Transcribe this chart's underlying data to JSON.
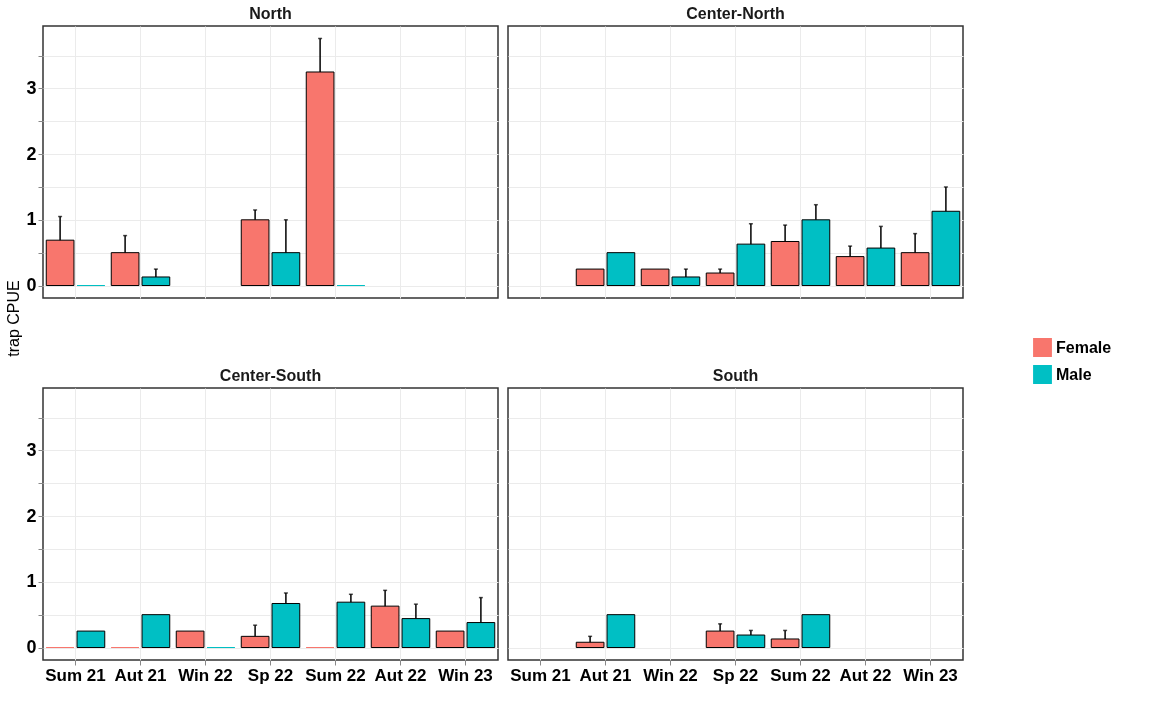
{
  "chart_data": [
    {
      "type": "bar",
      "title": "North",
      "ylabel": "trap CPUE",
      "categories": [
        "Sum 21",
        "Aut 21",
        "Win 22",
        "Sp 22",
        "Sum 22",
        "Aut 22",
        "Win 23"
      ],
      "series": [
        {
          "name": "Female",
          "color": "#f8766d",
          "values": [
            0.69,
            0.5,
            null,
            1.0,
            3.25,
            null,
            null
          ],
          "errors": [
            [
              0.69,
              1.05
            ],
            [
              0.5,
              0.76
            ],
            null,
            [
              1.0,
              1.15
            ],
            [
              3.25,
              3.76
            ],
            null,
            null
          ]
        },
        {
          "name": "Male",
          "color": "#00bfc4",
          "values": [
            0,
            0.13,
            null,
            0.5,
            0,
            null,
            null
          ],
          "errors": [
            null,
            [
              0.13,
              0.25
            ],
            null,
            [
              0.5,
              1.0
            ],
            null,
            null,
            null
          ]
        }
      ],
      "ylim": [
        -0.19,
        3.95
      ],
      "yticks": [
        0,
        {
          "value": 0.5,
          "label": null
        },
        1,
        {
          "value": 1.5,
          "label": null
        },
        2,
        {
          "value": 2.5,
          "label": null
        },
        3,
        {
          "value": 3.5,
          "label": null
        }
      ],
      "grid": true,
      "tick_labels": "y",
      "legend": "right"
    },
    {
      "type": "bar",
      "title": "Center-North",
      "categories": [
        "Sum 21",
        "Aut 21",
        "Win 22",
        "Sp 22",
        "Sum 22",
        "Aut 22",
        "Win 23"
      ],
      "series": [
        {
          "name": "Female",
          "color": "#f8766d",
          "values": [
            null,
            0.25,
            0.25,
            0.19,
            0.67,
            0.44,
            0.5
          ],
          "errors": [
            null,
            null,
            null,
            [
              0.19,
              0.25
            ],
            [
              0.67,
              0.92
            ],
            [
              0.44,
              0.6
            ],
            [
              0.5,
              0.79
            ]
          ]
        },
        {
          "name": "Male",
          "color": "#00bfc4",
          "values": [
            null,
            0.5,
            0.13,
            0.63,
            1.0,
            0.57,
            1.13
          ],
          "errors": [
            null,
            null,
            [
              0.13,
              0.25
            ],
            [
              0.63,
              0.94
            ],
            [
              1.0,
              1.23
            ],
            [
              0.57,
              0.9
            ],
            [
              1.13,
              1.5
            ]
          ]
        }
      ],
      "ylim": [
        -0.19,
        3.95
      ],
      "yticks": [
        0,
        {
          "value": 0.5,
          "label": null
        },
        1,
        {
          "value": 1.5,
          "label": null
        },
        2,
        {
          "value": 2.5,
          "label": null
        },
        3,
        {
          "value": 3.5,
          "label": null
        }
      ],
      "grid": true,
      "tick_labels": false
    },
    {
      "type": "bar",
      "title": "Center-South",
      "categories": [
        "Sum 21",
        "Aut 21",
        "Win 22",
        "Sp 22",
        "Sum 22",
        "Aut 22",
        "Win 23"
      ],
      "series": [
        {
          "name": "Female",
          "color": "#f8766d",
          "values": [
            0,
            0,
            0.25,
            0.17,
            0,
            0.63,
            0.25
          ],
          "errors": [
            null,
            null,
            null,
            [
              0.17,
              0.34
            ],
            null,
            [
              0.63,
              0.87
            ],
            null
          ]
        },
        {
          "name": "Male",
          "color": "#00bfc4",
          "values": [
            0.25,
            0.5,
            0,
            0.67,
            0.69,
            0.44,
            0.38
          ],
          "errors": [
            null,
            null,
            null,
            [
              0.67,
              0.83
            ],
            [
              0.69,
              0.81
            ],
            [
              0.44,
              0.66
            ],
            [
              0.38,
              0.76
            ]
          ]
        }
      ],
      "ylim": [
        -0.19,
        3.95
      ],
      "yticks": [
        0,
        {
          "value": 0.5,
          "label": null
        },
        1,
        {
          "value": 1.5,
          "label": null
        },
        2,
        {
          "value": 2.5,
          "label": null
        },
        3,
        {
          "value": 3.5,
          "label": null
        }
      ],
      "grid": true
    },
    {
      "type": "bar",
      "title": "South",
      "categories": [
        "Sum 21",
        "Aut 21",
        "Win 22",
        "Sp 22",
        "Sum 22",
        "Aut 22",
        "Win 23"
      ],
      "series": [
        {
          "name": "Female",
          "color": "#f8766d",
          "values": [
            null,
            0.08,
            null,
            0.25,
            0.13,
            null,
            null
          ],
          "errors": [
            null,
            [
              0.08,
              0.17
            ],
            null,
            [
              0.25,
              0.36
            ],
            [
              0.13,
              0.26
            ],
            null,
            null
          ]
        },
        {
          "name": "Male",
          "color": "#00bfc4",
          "values": [
            null,
            0.5,
            null,
            0.19,
            0.5,
            null,
            null
          ],
          "errors": [
            null,
            null,
            null,
            [
              0.19,
              0.26
            ],
            null,
            null,
            null
          ]
        }
      ],
      "ylim": [
        -0.19,
        3.95
      ],
      "yticks": [
        0,
        {
          "value": 0.5,
          "label": null
        },
        1,
        {
          "value": 1.5,
          "label": null
        },
        2,
        {
          "value": 2.5,
          "label": null
        },
        3,
        {
          "value": 3.5,
          "label": null
        }
      ],
      "grid": true,
      "tick_labels": "x"
    }
  ]
}
